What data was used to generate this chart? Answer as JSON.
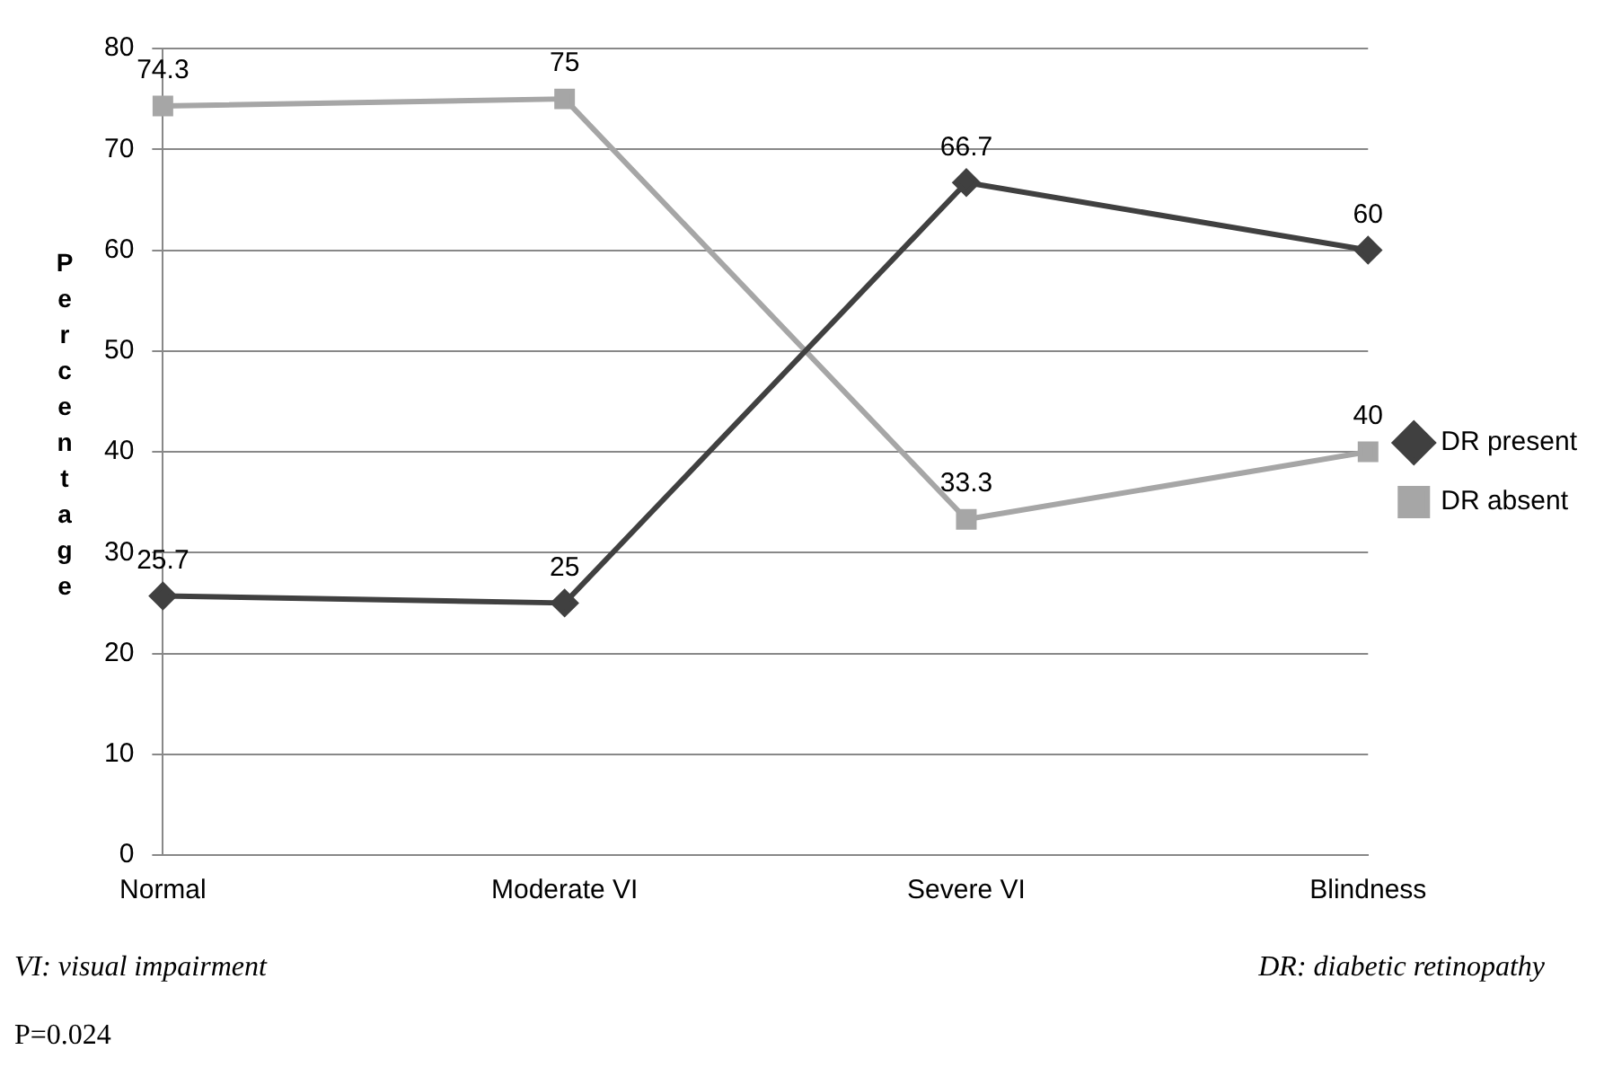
{
  "chart_data": {
    "type": "line",
    "ylabel": "Percentage",
    "categories": [
      "Normal",
      "Moderate VI",
      "Severe VI",
      "Blindness"
    ],
    "series": [
      {
        "name": "DR present",
        "color": "#404040",
        "values": [
          25.7,
          25,
          66.7,
          60
        ],
        "marker": "diamond"
      },
      {
        "name": "DR absent",
        "color": "#a6a6a6",
        "values": [
          74.3,
          75,
          33.3,
          40
        ],
        "marker": "square"
      }
    ],
    "ylim": [
      0,
      80
    ],
    "yticks": [
      0,
      10,
      20,
      30,
      40,
      50,
      60,
      70,
      80
    ],
    "grid": "y",
    "legend": "right",
    "data_labels": true,
    "line_style": "solid",
    "annotations": [
      "VI: visual impairment",
      "DR: diabetic retinopathy",
      "P=0.024"
    ]
  }
}
